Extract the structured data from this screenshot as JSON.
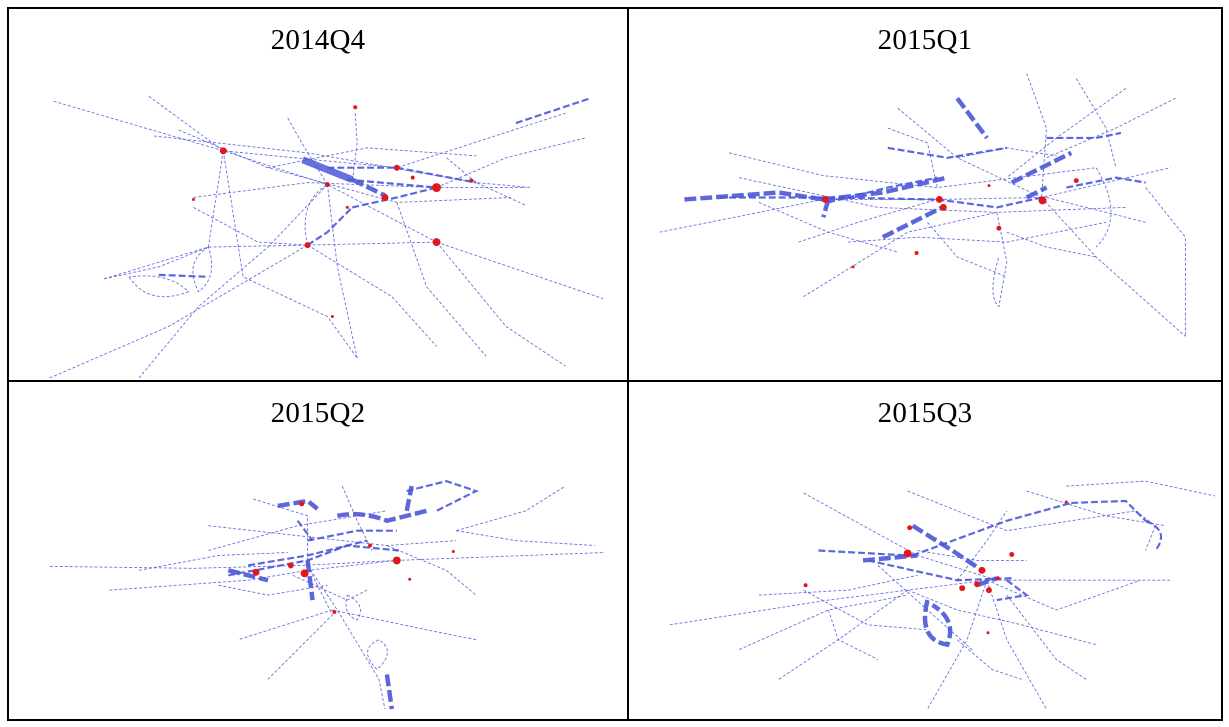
{
  "panels": [
    {
      "title": "2014Q4"
    },
    {
      "title": "2015Q1"
    },
    {
      "title": "2015Q2"
    },
    {
      "title": "2015Q3"
    }
  ],
  "colors": {
    "edge": "#4b57d8",
    "node": "#e0181e",
    "border": "#000000"
  }
}
